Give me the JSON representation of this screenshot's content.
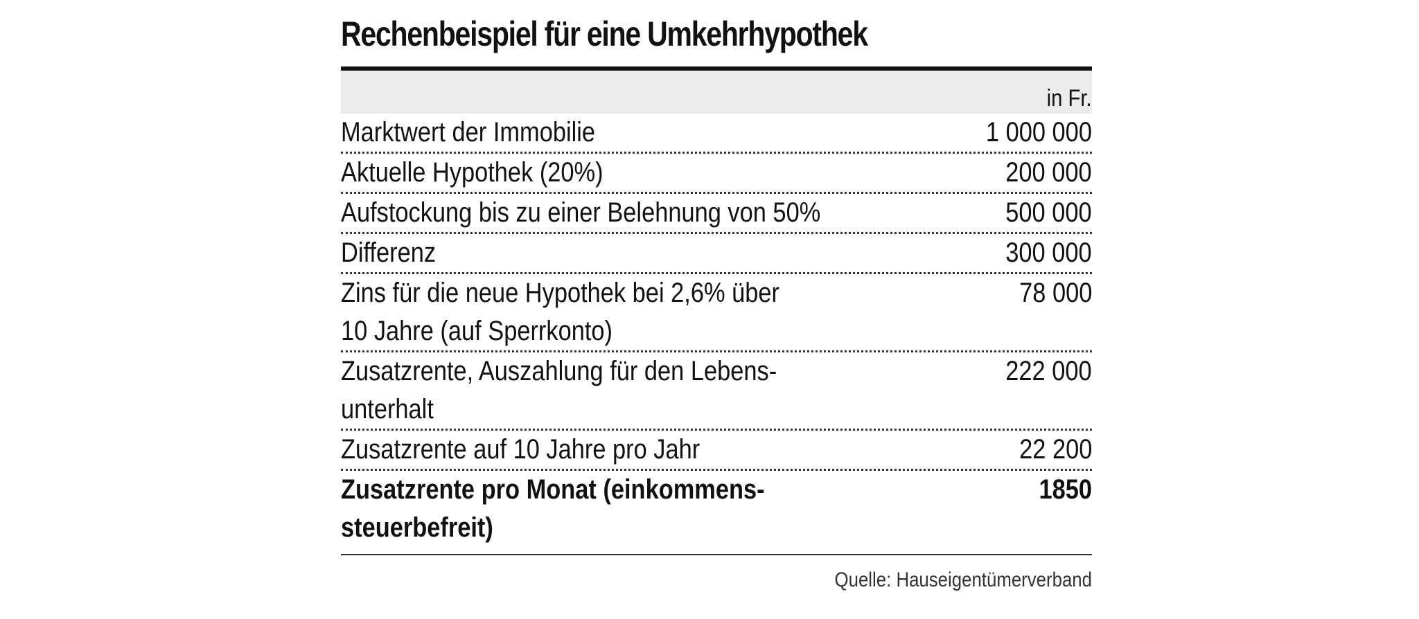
{
  "title": "Rechenbeispiel für eine Umkehrhypothek",
  "unit": "in Fr.",
  "rows": [
    {
      "label": "Marktwert der Immobilie",
      "value": "1 000 000"
    },
    {
      "label": "Aktuelle Hypothek (20%)",
      "value": "200 000"
    },
    {
      "label": "Aufstockung bis zu einer Belehnung von 50%",
      "value": "500 000"
    },
    {
      "label": "Differenz",
      "value": "300 000"
    },
    {
      "label": "Zins für die neue Hypothek bei 2,6% über 10 Jahre (auf Sperrkonto)",
      "value": "78 000"
    },
    {
      "label": "Zusatzrente, Auszahlung für den Lebens­unterhalt",
      "value": "222 000"
    },
    {
      "label": "Zusatzrente auf 10 Jahre pro Jahr",
      "value": "22 200"
    },
    {
      "label": "Zusatzrente pro Monat (einkommens­steuerbefreit)",
      "value": "1850"
    }
  ],
  "source": "Quelle: Hauseigentümerverband"
}
